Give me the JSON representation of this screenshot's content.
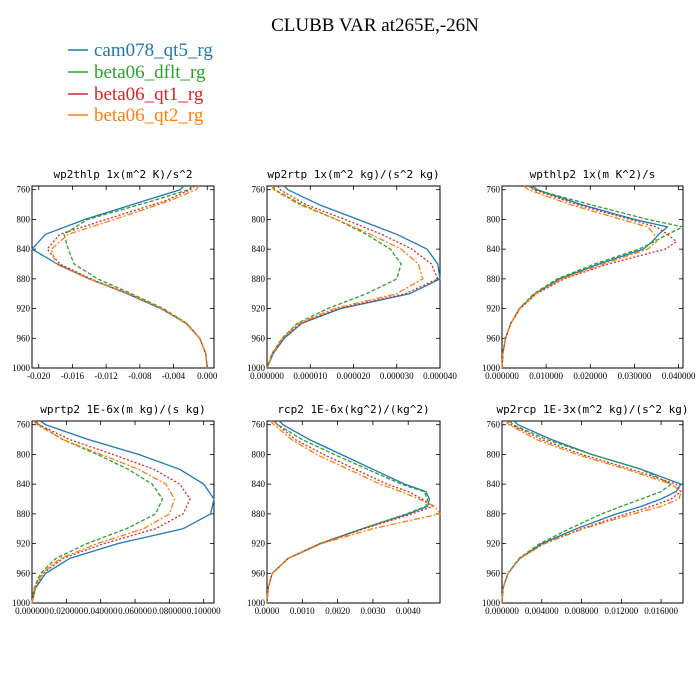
{
  "title": "CLUBB VAR at265E,-26N",
  "legend": [
    {
      "label": "cam078_qt5_rg",
      "color": "#1f77b4"
    },
    {
      "label": "beta06_dflt_rg",
      "color": "#2ca02c"
    },
    {
      "label": "beta06_qt1_rg",
      "color": "#d62728"
    },
    {
      "label": "beta06_qt2_rg",
      "color": "#ff7f0e"
    }
  ],
  "chart_data": [
    {
      "type": "line",
      "title": "wp2thlp   1x(m^2 K)/s^2",
      "xlim": [
        -0.0208,
        0.0008
      ],
      "ylim": [
        755,
        1000
      ],
      "y_reversed": true,
      "xticks": [
        -0.02,
        -0.016,
        -0.012,
        -0.008,
        -0.004,
        0.0
      ],
      "xtick_labels": [
        "-0.020",
        "-0.016",
        "-0.012",
        "-0.008",
        "-0.004",
        "0.000"
      ],
      "yticks": [
        760,
        800,
        840,
        880,
        920,
        960,
        1000
      ],
      "y": [
        755,
        760,
        775,
        800,
        820,
        840,
        860,
        880,
        900,
        920,
        940,
        960,
        980,
        1000
      ],
      "series": [
        {
          "name": "cam078_qt5_rg",
          "x": [
            -0.0028,
            -0.0032,
            -0.0075,
            -0.0145,
            -0.0192,
            -0.0208,
            -0.0178,
            -0.014,
            -0.0095,
            -0.0055,
            -0.0025,
            -0.0009,
            -0.0002,
            0.0
          ]
        },
        {
          "name": "beta06_dflt_rg",
          "x": [
            -0.0018,
            -0.0022,
            -0.0065,
            -0.0142,
            -0.017,
            -0.0165,
            -0.0158,
            -0.013,
            -0.009,
            -0.0052,
            -0.0024,
            -0.0009,
            -0.0002,
            0.0
          ]
        },
        {
          "name": "beta06_qt1_rg",
          "x": [
            -0.0015,
            -0.002,
            -0.005,
            -0.012,
            -0.0175,
            -0.019,
            -0.0175,
            -0.0138,
            -0.0093,
            -0.0054,
            -0.0025,
            -0.0009,
            -0.0002,
            0.0
          ]
        },
        {
          "name": "beta06_qt2_rg",
          "x": [
            -0.001,
            -0.0013,
            -0.0045,
            -0.011,
            -0.0165,
            -0.0185,
            -0.018,
            -0.014,
            -0.0093,
            -0.0054,
            -0.0025,
            -0.0009,
            -0.0002,
            0.0
          ]
        }
      ]
    },
    {
      "type": "line",
      "title": "wp2rtp   1x(m^2 kg)/(s^2 kg)",
      "xlim": [
        0.0,
        4e-05
      ],
      "ylim": [
        755,
        1000
      ],
      "y_reversed": true,
      "xticks": [
        0.0,
        1e-05,
        2e-05,
        3e-05,
        4e-05
      ],
      "xtick_labels": [
        "0.000000",
        "0.000010",
        "0.000020",
        "0.000030",
        "0.000040"
      ],
      "yticks": [
        760,
        800,
        840,
        880,
        920,
        960,
        1000
      ],
      "y": [
        755,
        760,
        780,
        800,
        820,
        840,
        860,
        880,
        900,
        920,
        940,
        960,
        980,
        1000
      ],
      "series": [
        {
          "name": "cam078_qt5_rg",
          "x": [
            4e-06,
            4.8e-06,
            1.2e-05,
            2.1e-05,
            3e-05,
            3.7e-05,
            3.95e-05,
            4e-05,
            3.3e-05,
            1.7e-05,
            8e-06,
            4e-06,
            1.5e-06,
            0.0
          ]
        },
        {
          "name": "beta06_dflt_rg",
          "x": [
            1.5e-06,
            1.8e-06,
            8e-06,
            1.6e-05,
            2.3e-05,
            2.85e-05,
            3.1e-05,
            3e-05,
            2.3e-05,
            1.4e-05,
            7e-06,
            3.5e-06,
            1.2e-06,
            0.0
          ]
        },
        {
          "name": "beta06_qt1_rg",
          "x": [
            2.5e-06,
            3e-06,
            9e-06,
            1.8e-05,
            2.65e-05,
            3.35e-05,
            3.8e-05,
            3.95e-05,
            3.2e-05,
            1.65e-05,
            7.8e-06,
            3.8e-06,
            1.4e-06,
            0.0
          ]
        },
        {
          "name": "beta06_qt2_rg",
          "x": [
            1.2e-06,
            1.5e-06,
            7.5e-06,
            1.6e-05,
            2.4e-05,
            3.1e-05,
            3.5e-05,
            3.6e-05,
            3e-05,
            1.55e-05,
            7.3e-06,
            3.6e-06,
            1.3e-06,
            0.0
          ]
        }
      ]
    },
    {
      "type": "line",
      "title": "wpthlp2   1x(m K^2)/s",
      "xlim": [
        0.0,
        0.041
      ],
      "ylim": [
        755,
        1000
      ],
      "y_reversed": true,
      "xticks": [
        0.0,
        0.01,
        0.02,
        0.03,
        0.04
      ],
      "xtick_labels": [
        "0.000000",
        "0.010000",
        "0.020000",
        "0.030000",
        "0.040000"
      ],
      "yticks": [
        760,
        800,
        840,
        880,
        920,
        960,
        1000
      ],
      "y": [
        755,
        760,
        780,
        800,
        810,
        820,
        830,
        840,
        860,
        880,
        900,
        920,
        940,
        960,
        980,
        1000
      ],
      "series": [
        {
          "name": "cam078_qt5_rg",
          "x": [
            0.0068,
            0.008,
            0.018,
            0.03,
            0.0375,
            0.0355,
            0.034,
            0.032,
            0.022,
            0.013,
            0.0075,
            0.004,
            0.002,
            0.0008,
            0.0002,
            0.0
          ]
        },
        {
          "name": "beta06_dflt_rg",
          "x": [
            0.0062,
            0.0075,
            0.02,
            0.033,
            0.041,
            0.0375,
            0.0345,
            0.031,
            0.021,
            0.0125,
            0.0072,
            0.0039,
            0.002,
            0.0008,
            0.0002,
            0.0
          ]
        },
        {
          "name": "beta06_qt1_rg",
          "x": [
            0.006,
            0.0072,
            0.017,
            0.029,
            0.035,
            0.0375,
            0.0395,
            0.037,
            0.024,
            0.014,
            0.0078,
            0.0041,
            0.002,
            0.0008,
            0.0002,
            0.0
          ]
        },
        {
          "name": "beta06_qt2_rg",
          "x": [
            0.005,
            0.006,
            0.0155,
            0.027,
            0.033,
            0.0345,
            0.035,
            0.033,
            0.023,
            0.0135,
            0.0076,
            0.004,
            0.002,
            0.0008,
            0.0002,
            0.0
          ]
        }
      ]
    },
    {
      "type": "line",
      "title": "wprtp2   1E-6x(m kg)/(s kg)",
      "xlim": [
        0.0,
        0.106
      ],
      "ylim": [
        755,
        1000
      ],
      "y_reversed": true,
      "xticks": [
        0.0,
        0.02,
        0.04,
        0.06,
        0.08,
        0.1
      ],
      "xtick_labels": [
        "0.000000",
        "0.020000",
        "0.040000",
        "0.060000",
        "0.080000",
        "0.100000"
      ],
      "yticks": [
        760,
        800,
        840,
        880,
        920,
        960,
        1000
      ],
      "y": [
        755,
        760,
        780,
        800,
        820,
        840,
        860,
        880,
        900,
        920,
        940,
        960,
        980,
        1000
      ],
      "series": [
        {
          "name": "cam078_qt5_rg",
          "x": [
            0.005,
            0.008,
            0.033,
            0.062,
            0.086,
            0.1,
            0.106,
            0.104,
            0.088,
            0.05,
            0.022,
            0.008,
            0.002,
            0.0
          ]
        },
        {
          "name": "beta06_dflt_rg",
          "x": [
            0.002,
            0.004,
            0.018,
            0.038,
            0.056,
            0.07,
            0.076,
            0.072,
            0.055,
            0.032,
            0.014,
            0.005,
            0.0012,
            0.0
          ]
        },
        {
          "name": "beta06_qt1_rg",
          "x": [
            0.002,
            0.004,
            0.022,
            0.047,
            0.071,
            0.086,
            0.092,
            0.088,
            0.072,
            0.042,
            0.018,
            0.0065,
            0.0016,
            0.0
          ]
        },
        {
          "name": "beta06_qt2_rg",
          "x": [
            0.001,
            0.003,
            0.018,
            0.04,
            0.062,
            0.078,
            0.083,
            0.08,
            0.065,
            0.038,
            0.0165,
            0.006,
            0.0015,
            0.0
          ]
        }
      ]
    },
    {
      "type": "line",
      "title": "rcp2   1E-6x(kg^2)/(kg^2)",
      "xlim": [
        0.0,
        0.0049
      ],
      "ylim": [
        755,
        1000
      ],
      "y_reversed": true,
      "xticks": [
        0.0,
        0.001,
        0.002,
        0.003,
        0.004
      ],
      "xtick_labels": [
        "0.0000",
        "0.0010",
        "0.0020",
        "0.0030",
        "0.0040"
      ],
      "yticks": [
        760,
        800,
        840,
        880,
        920,
        960,
        1000
      ],
      "y": [
        755,
        760,
        780,
        800,
        820,
        840,
        850,
        860,
        870,
        880,
        900,
        920,
        940,
        960,
        980,
        1000
      ],
      "series": [
        {
          "name": "cam078_qt5_rg",
          "x": [
            0.00035,
            0.00045,
            0.0012,
            0.0021,
            0.003,
            0.0039,
            0.0045,
            0.0046,
            0.00455,
            0.004,
            0.0027,
            0.0015,
            0.0006,
            0.00015,
            3e-05,
            0.0
          ]
        },
        {
          "name": "beta06_dflt_rg",
          "x": [
            0.0002,
            0.0003,
            0.001,
            0.0019,
            0.00285,
            0.0038,
            0.00445,
            0.00455,
            0.0045,
            0.00395,
            0.0027,
            0.0015,
            0.0006,
            0.00015,
            3e-05,
            0.0
          ]
        },
        {
          "name": "beta06_qt1_rg",
          "x": [
            0.0002,
            0.0003,
            0.0008,
            0.0016,
            0.0025,
            0.0034,
            0.004,
            0.0044,
            0.0047,
            0.0041,
            0.00275,
            0.00152,
            0.0006,
            0.00015,
            3e-05,
            0.0
          ]
        },
        {
          "name": "beta06_qt2_rg",
          "x": [
            0.0001,
            0.0002,
            0.0007,
            0.0014,
            0.0023,
            0.0032,
            0.0038,
            0.0043,
            0.00475,
            0.0049,
            0.003,
            0.00155,
            0.0006,
            0.00015,
            3e-05,
            0.0
          ]
        }
      ]
    },
    {
      "type": "line",
      "title": "wp2rcp   1E-3x(m^2 kg)/(s^2 kg)",
      "xlim": [
        0.0,
        0.0182
      ],
      "ylim": [
        755,
        1000
      ],
      "y_reversed": true,
      "xticks": [
        0.0,
        0.004,
        0.008,
        0.012,
        0.016
      ],
      "xtick_labels": [
        "0.000000",
        "0.004000",
        "0.008000",
        "0.012000",
        "0.016000"
      ],
      "yticks": [
        760,
        800,
        840,
        880,
        920,
        960,
        1000
      ],
      "y": [
        755,
        760,
        780,
        800,
        820,
        840,
        850,
        860,
        870,
        880,
        900,
        920,
        940,
        960,
        980,
        1000
      ],
      "series": [
        {
          "name": "cam078_qt5_rg",
          "x": [
            0.0012,
            0.0016,
            0.005,
            0.009,
            0.014,
            0.018,
            0.0175,
            0.016,
            0.014,
            0.0115,
            0.0075,
            0.004,
            0.0018,
            0.0006,
            0.0001,
            0.0
          ]
        },
        {
          "name": "beta06_dflt_rg",
          "x": [
            0.0008,
            0.0011,
            0.0045,
            0.009,
            0.014,
            0.017,
            0.016,
            0.014,
            0.012,
            0.01,
            0.0068,
            0.0038,
            0.0017,
            0.0006,
            0.0001,
            0.0
          ]
        },
        {
          "name": "beta06_qt1_rg",
          "x": [
            0.0006,
            0.0009,
            0.004,
            0.008,
            0.013,
            0.0175,
            0.018,
            0.017,
            0.015,
            0.0125,
            0.008,
            0.0042,
            0.0018,
            0.0006,
            0.0001,
            0.0
          ]
        },
        {
          "name": "beta06_qt2_rg",
          "x": [
            0.0004,
            0.0007,
            0.0035,
            0.0075,
            0.0125,
            0.017,
            0.018,
            0.0178,
            0.016,
            0.0132,
            0.0082,
            0.0043,
            0.0018,
            0.0006,
            0.0001,
            0.0
          ]
        }
      ]
    }
  ]
}
